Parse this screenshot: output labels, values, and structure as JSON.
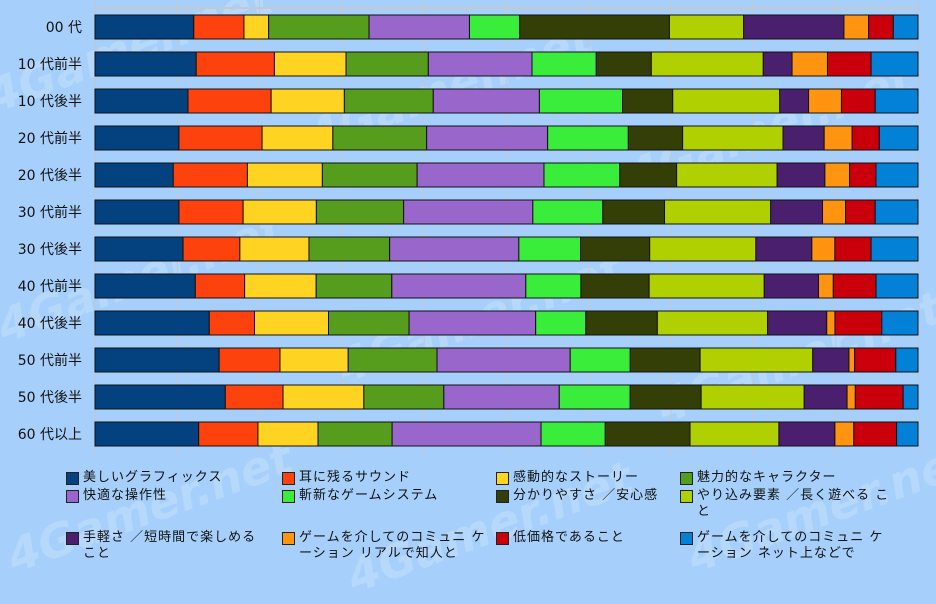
{
  "chart_data": {
    "type": "bar",
    "orientation": "horizontal",
    "stacked": true,
    "normalized_percent": true,
    "title": "",
    "xlabel": "",
    "ylabel": "",
    "xlim": [
      0,
      100
    ],
    "grid": true,
    "legend_position": "bottom",
    "categories": [
      "00 代",
      "10 代前半",
      "10 代後半",
      "20 代前半",
      "20 代後半",
      "30 代前半",
      "30 代後半",
      "40 代前半",
      "40 代後半",
      "50 代前半",
      "50 代後半",
      "60 代以上"
    ],
    "series": [
      {
        "name": "美しいグラフィックス",
        "color": "#03417f",
        "values": [
          12.0,
          12.3,
          11.3,
          10.2,
          9.5,
          10.2,
          10.7,
          12.2,
          13.9,
          15.1,
          15.8,
          12.6
        ]
      },
      {
        "name": "耳に残るサウンド",
        "color": "#fd420e",
        "values": [
          6.1,
          9.5,
          10.1,
          10.1,
          9.0,
          7.8,
          6.9,
          6.0,
          5.5,
          7.4,
          7.0,
          7.2
        ]
      },
      {
        "name": "感動的なストーリー",
        "color": "#fed322",
        "values": [
          3.0,
          8.7,
          8.9,
          8.6,
          9.1,
          8.9,
          8.4,
          8.7,
          9.0,
          8.3,
          9.8,
          7.3
        ]
      },
      {
        "name": "魅力的なキャラクター",
        "color": "#569c1d",
        "values": [
          12.2,
          10.0,
          10.8,
          11.4,
          11.5,
          10.6,
          9.8,
          9.2,
          9.8,
          10.8,
          9.7,
          9.0
        ]
      },
      {
        "name": "快適な操作性",
        "color": "#9966cc",
        "values": [
          12.2,
          12.6,
          12.9,
          14.7,
          15.4,
          15.7,
          15.7,
          16.3,
          15.4,
          16.2,
          14.0,
          18.1
        ]
      },
      {
        "name": "斬新なゲームシステム",
        "color": "#3bed3b",
        "values": [
          6.1,
          7.8,
          10.1,
          9.8,
          9.2,
          8.5,
          7.5,
          6.7,
          6.1,
          7.3,
          8.6,
          7.8
        ]
      },
      {
        "name": "分かりやすさ ／安心感",
        "color": "#333f07",
        "values": [
          18.2,
          6.7,
          6.1,
          6.6,
          6.9,
          7.5,
          8.4,
          8.3,
          8.7,
          8.5,
          8.6,
          10.3
        ]
      },
      {
        "name": "やり込み要素 ／長く遊べること",
        "color": "#b0d002",
        "values": [
          9.0,
          13.6,
          13.0,
          12.2,
          12.2,
          12.9,
          12.9,
          14.0,
          13.4,
          13.7,
          12.5,
          10.8
        ]
      },
      {
        "name": "手軽さ ／短時間で楽しめること",
        "color": "#4a1f6e",
        "values": [
          12.2,
          3.5,
          3.5,
          5.0,
          5.8,
          6.3,
          6.8,
          6.6,
          7.2,
          4.4,
          5.2,
          6.8
        ]
      },
      {
        "name": "ゲームを介してのコミュニケーション リアルで知人と",
        "color": "#fe940f",
        "values": [
          3.0,
          4.3,
          4.0,
          3.4,
          3.0,
          2.8,
          2.8,
          1.8,
          1.0,
          0.7,
          1.0,
          2.3
        ]
      },
      {
        "name": "低価格であること",
        "color": "#c9000b",
        "values": [
          3.0,
          5.3,
          4.1,
          3.3,
          3.2,
          3.6,
          4.4,
          5.2,
          5.7,
          5.0,
          5.8,
          5.2
        ]
      },
      {
        "name": "ゲームを介してのコミュニケーション ネット上などで",
        "color": "#0281d6",
        "values": [
          3.0,
          5.7,
          5.2,
          4.7,
          5.1,
          5.2,
          5.7,
          5.1,
          4.4,
          2.7,
          1.8,
          2.6
        ]
      }
    ]
  },
  "legend": {
    "items": [
      {
        "label": "美しいグラフィックス",
        "color": "#03417f"
      },
      {
        "label": "耳に残るサウンド",
        "color": "#fd420e"
      },
      {
        "label": "感動的なストーリー",
        "color": "#fed322"
      },
      {
        "label": "魅力的なキャラクター",
        "color": "#569c1d"
      },
      {
        "label": "快適な操作性",
        "color": "#9966cc"
      },
      {
        "label": "斬新なゲームシステム",
        "color": "#3bed3b"
      },
      {
        "label": "分かりやすさ ／安心感",
        "color": "#333f07"
      },
      {
        "label": "やり込み要素 ／長く遊べる こと",
        "color": "#b0d002"
      },
      {
        "label": "手軽さ ／短時間で楽しめる こと",
        "color": "#4a1f6e"
      },
      {
        "label": "ゲームを介してのコミュニ ケーション リアルで知人と",
        "color": "#fe940f"
      },
      {
        "label": "低価格であること",
        "color": "#c9000b"
      },
      {
        "label": "ゲームを介してのコミュニ ケーション ネット上などで",
        "color": "#0281d6"
      }
    ]
  },
  "watermark": "4Gamer.net"
}
